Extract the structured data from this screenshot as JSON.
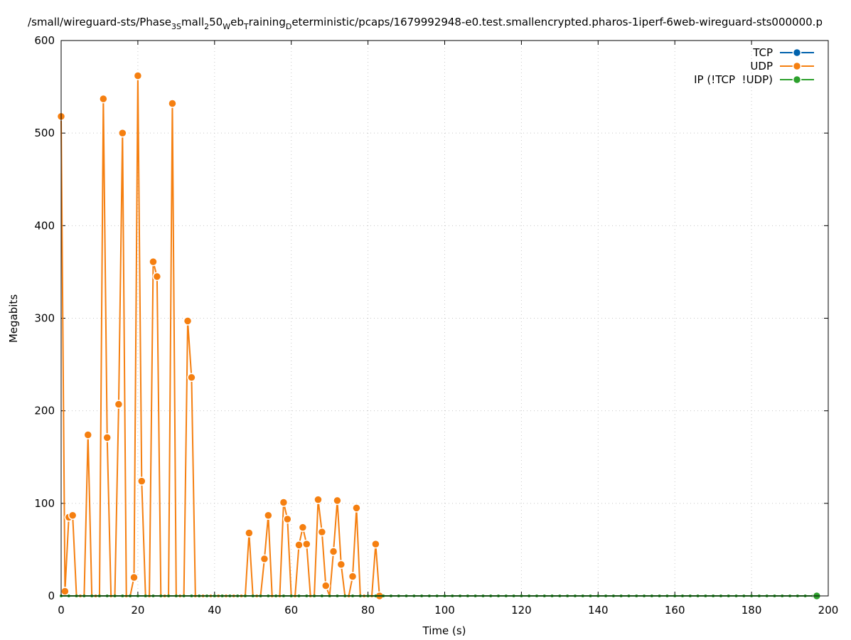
{
  "chart_data": {
    "type": "line",
    "title": [
      {
        "text": "/small/wireguard-sts/Phase",
        "sub": false
      },
      {
        "text": "3S",
        "sub": true
      },
      {
        "text": "mall",
        "sub": false
      },
      {
        "text": "2",
        "sub": true
      },
      {
        "text": "50",
        "sub": false
      },
      {
        "text": "W",
        "sub": true
      },
      {
        "text": "eb",
        "sub": false
      },
      {
        "text": "T",
        "sub": true
      },
      {
        "text": "raining",
        "sub": false
      },
      {
        "text": "D",
        "sub": true
      },
      {
        "text": "eterministic/pcaps/1679992948-e0.test.smallencrypted.pharos-1iperf-6web-wireguard-sts000000.p",
        "sub": false
      }
    ],
    "xlabel": "Time (s)",
    "ylabel": "Megabits",
    "xlim": [
      0,
      200
    ],
    "xticks": [
      0,
      20,
      40,
      60,
      80,
      100,
      120,
      140,
      160,
      180,
      200
    ],
    "ylim": [
      0,
      600
    ],
    "yticks": [
      0,
      100,
      200,
      300,
      400,
      500,
      600
    ],
    "grid": true,
    "legend": "top-right",
    "series": [
      {
        "name": "TCP",
        "color": "#0062ad",
        "x": [],
        "values": []
      },
      {
        "name": "UDP",
        "color": "#f57f10",
        "x": [
          0,
          1,
          2,
          3,
          4,
          5,
          6,
          7,
          8,
          9,
          10,
          11,
          12,
          13,
          14,
          15,
          16,
          17,
          18,
          19,
          20,
          21,
          22,
          23,
          24,
          25,
          26,
          27,
          28,
          29,
          30,
          31,
          32,
          33,
          34,
          35,
          36,
          37,
          38,
          39,
          40,
          41,
          42,
          43,
          44,
          45,
          46,
          47,
          48,
          49,
          50,
          51,
          52,
          53,
          54,
          55,
          56,
          57,
          58,
          59,
          60,
          61,
          62,
          63,
          64,
          65,
          66,
          67,
          68,
          69,
          70,
          71,
          72,
          73,
          74,
          75,
          76,
          77,
          78,
          79,
          80,
          81,
          82,
          83
        ],
        "values": [
          518,
          5,
          85,
          87,
          0,
          0,
          0,
          174,
          0,
          0,
          0,
          537,
          171,
          0,
          0,
          207,
          500,
          0,
          0,
          20,
          562,
          124,
          0,
          0,
          361,
          345,
          0,
          0,
          0,
          532,
          0,
          0,
          0,
          297,
          236,
          0,
          0,
          0,
          0,
          0,
          0,
          0,
          0,
          0,
          0,
          0,
          0,
          0,
          0,
          68,
          0,
          0,
          0,
          40,
          87,
          0,
          0,
          0,
          101,
          83,
          0,
          0,
          55,
          74,
          56,
          0,
          0,
          104,
          69,
          11,
          0,
          48,
          103,
          34,
          0,
          0,
          21,
          95,
          0,
          0,
          0,
          0,
          56,
          0
        ]
      },
      {
        "name": "IP (!TCP  !UDP)",
        "color": "#2ca02c",
        "x": [
          0,
          2,
          4,
          6,
          8,
          10,
          12,
          14,
          16,
          18,
          20,
          22,
          24,
          26,
          28,
          30,
          32,
          34,
          36,
          38,
          40,
          42,
          44,
          46,
          48,
          50,
          52,
          54,
          56,
          58,
          60,
          62,
          64,
          66,
          68,
          70,
          72,
          74,
          76,
          78,
          80,
          82,
          84,
          86,
          88,
          90,
          92,
          94,
          96,
          98,
          100,
          102,
          104,
          106,
          108,
          110,
          112,
          114,
          116,
          118,
          120,
          122,
          124,
          126,
          128,
          130,
          132,
          134,
          136,
          138,
          140,
          142,
          144,
          146,
          148,
          150,
          152,
          154,
          156,
          158,
          160,
          162,
          164,
          166,
          168,
          170,
          172,
          174,
          176,
          178,
          180,
          182,
          184,
          186,
          188,
          190,
          192,
          194,
          196,
          197
        ],
        "values": [
          0,
          0,
          0,
          0,
          0,
          0,
          0,
          0,
          0,
          0,
          0,
          0,
          0,
          0,
          0,
          0,
          0,
          0,
          0,
          0,
          0,
          0,
          0,
          0,
          0,
          0,
          0,
          0,
          0,
          0,
          0,
          0,
          0,
          0,
          0,
          0,
          0,
          0,
          0,
          0,
          0,
          0,
          0,
          0,
          0,
          0,
          0,
          0,
          0,
          0,
          0,
          0,
          0,
          0,
          0,
          0,
          0,
          0,
          0,
          0,
          0,
          0,
          0,
          0,
          0,
          0,
          0,
          0,
          0,
          0,
          0,
          0,
          0,
          0,
          0,
          0,
          0,
          0,
          0,
          0,
          0,
          0,
          0,
          0,
          0,
          0,
          0,
          0,
          0,
          0,
          0,
          0,
          0,
          0,
          0,
          0,
          0,
          0,
          0,
          0
        ]
      }
    ]
  }
}
